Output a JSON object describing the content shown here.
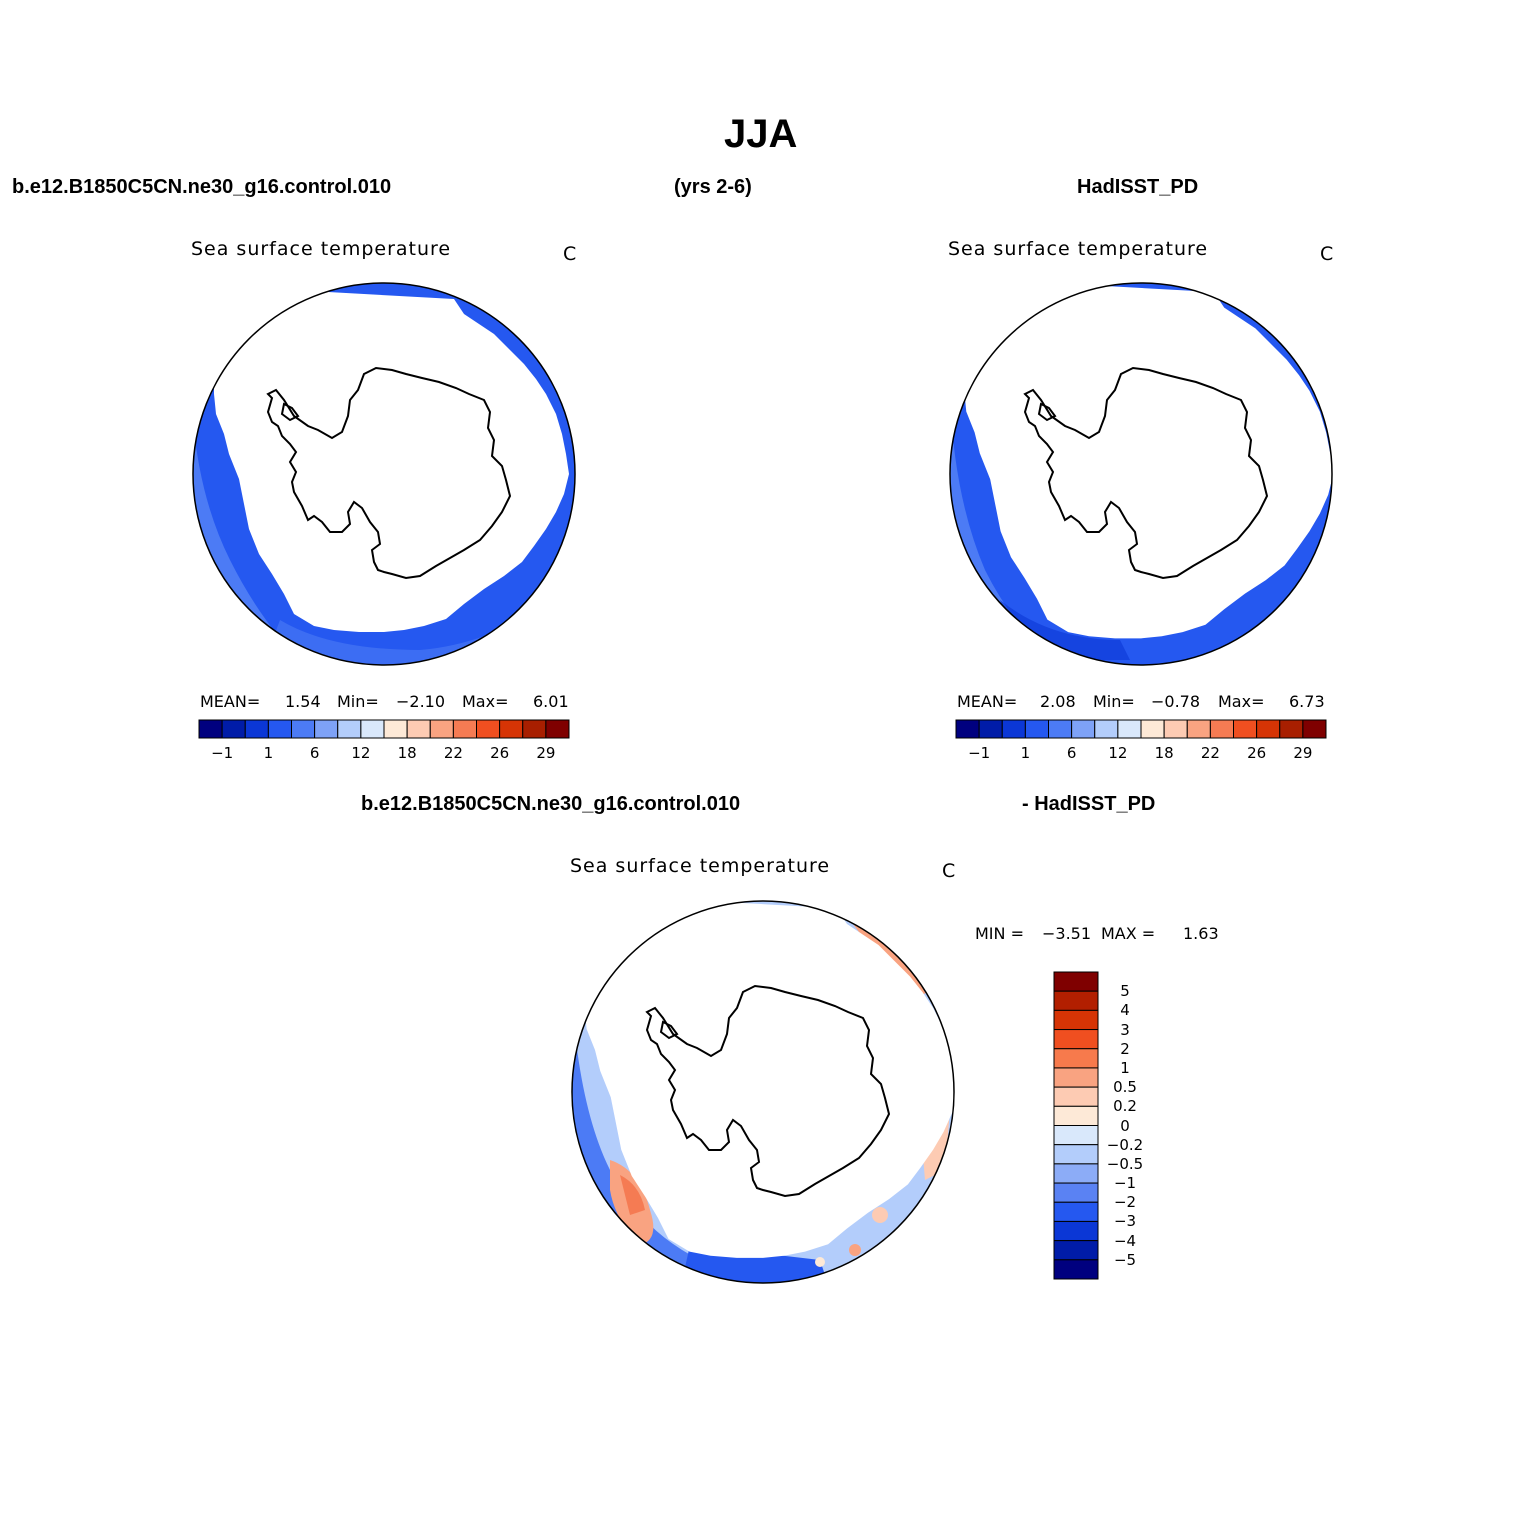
{
  "figure": {
    "title": "JJA",
    "case_name": "b.e12.B1850C5CN.ne30_g16.control.010",
    "years": "(yrs 2-6)",
    "obs_name": "HadISST_PD",
    "diff_case_name": "b.e12.B1850C5CN.ne30_g16.control.010",
    "diff_obs_name": "- HadISST_PD"
  },
  "panels": [
    {
      "id": "model",
      "variable": "Sea surface temperature",
      "units": "C",
      "stats": {
        "mean_label": "MEAN=",
        "mean": "1.54",
        "min_label": "Min=",
        "min": "−2.10",
        "max_label": "Max=",
        "max": "6.01"
      }
    },
    {
      "id": "obs",
      "variable": "Sea surface temperature",
      "units": "C",
      "stats": {
        "mean_label": "MEAN=",
        "mean": "2.08",
        "min_label": "Min=",
        "min": "−0.78",
        "max_label": "Max=",
        "max": "6.73"
      }
    },
    {
      "id": "diff",
      "variable": "Sea surface temperature",
      "units": "C",
      "stats": {
        "min_label": "MIN =",
        "min": "−3.51",
        "max_label": "MAX =",
        "max": "1.63"
      }
    }
  ],
  "colorbar_main": {
    "colors": [
      "#00007f",
      "#001ca8",
      "#0b37d6",
      "#2558f0",
      "#4c7bf5",
      "#7ea2f7",
      "#b3cdfb",
      "#d9e8fb",
      "#fde9d7",
      "#fdcbb3",
      "#f9a381",
      "#f57b53",
      "#f04f20",
      "#d63405",
      "#a81f00",
      "#7f0000"
    ],
    "tick_labels": [
      "−1",
      "1",
      "6",
      "12",
      "18",
      "22",
      "26",
      "29"
    ]
  },
  "colorbar_diff": {
    "colors": [
      "#7f0000",
      "#b21f00",
      "#d63405",
      "#f04f20",
      "#f77a4c",
      "#f9a381",
      "#fdcbb3",
      "#fde9d7",
      "#d9e8fb",
      "#b3cdfb",
      "#8cacf7",
      "#5a82f3",
      "#2558f0",
      "#0b37d6",
      "#001ca8",
      "#00007f"
    ],
    "tick_labels": [
      "5",
      "4",
      "3",
      "2",
      "1",
      "0.5",
      "0.2",
      "0",
      "−0.2",
      "−0.5",
      "−1",
      "−2",
      "−3",
      "−4",
      "−5"
    ]
  }
}
